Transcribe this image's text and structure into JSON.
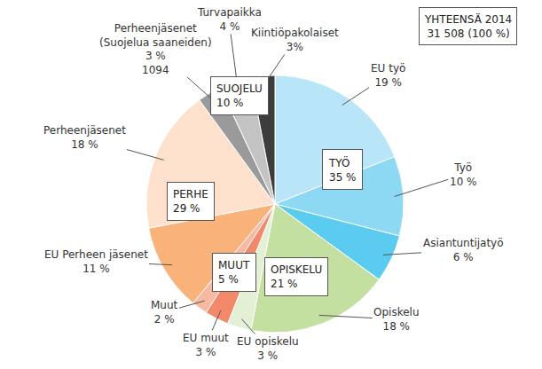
{
  "chart_data": {
    "type": "pie",
    "categories": [
      "EU työ",
      "Työ",
      "Asiantuntijatyö",
      "Opiskelu",
      "EU opiskelu",
      "EU muut",
      "Muut",
      "EU Perheen jäsenet",
      "Perheenjäsenet",
      "Perheenjäsenet\n(Suojelua saaneiden)",
      "Turvapaikka",
      "Kiintiöpakolaiset"
    ],
    "values": [
      19,
      10,
      6,
      18,
      3,
      3,
      2,
      11,
      18,
      3,
      4,
      3
    ],
    "value_labels": [
      "19 %",
      "10 %",
      "6 %",
      "18 %",
      "3 %",
      "3 %",
      "2 %",
      "11 %",
      "18 %",
      "3 %",
      "4 %",
      "3%"
    ],
    "counts": [
      null,
      null,
      null,
      null,
      null,
      null,
      null,
      null,
      null,
      1094,
      null,
      null
    ],
    "colors": [
      "#b8e6f8",
      "#8dd8f3",
      "#5ccbf0",
      "#c4e0a0",
      "#e3f0d3",
      "#f2896a",
      "#f8b9a3",
      "#f9b27a",
      "#fde1cd",
      "#9a9a9a",
      "#c3c3c3",
      "#3d3d3d"
    ],
    "data_labels": true,
    "groups": [
      {
        "label": "TYÖ",
        "value": 35,
        "value_label": "35 %"
      },
      {
        "label": "OPISKELU",
        "value": 21,
        "value_label": "21 %"
      },
      {
        "label": "MUUT",
        "value": 5,
        "value_label": "5 %"
      },
      {
        "label": "PERHE",
        "value": 29,
        "value_label": "29 %"
      },
      {
        "label": "SUOJELU",
        "value": 10,
        "value_label": "10 %"
      }
    ],
    "total": {
      "label": "YHTEENSÄ 2014",
      "text": "31 508 (100 %)"
    }
  }
}
